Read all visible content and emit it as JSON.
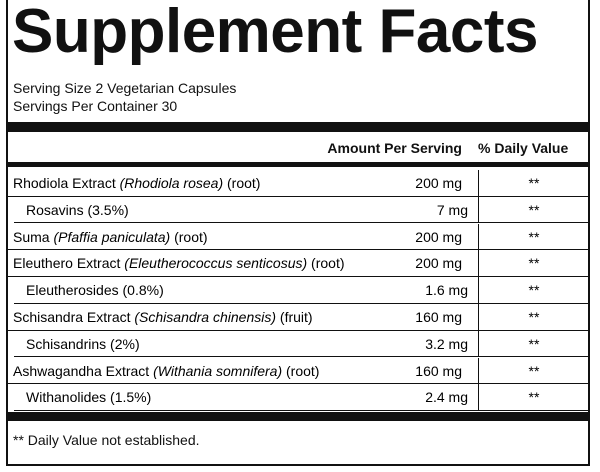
{
  "header": {
    "title": "Supplement Facts",
    "serving_size": "Serving Size 2 Vegetarian Capsules",
    "servings_per_container": "Servings Per Container 30"
  },
  "table": {
    "columns": [
      "Amount Per Serving",
      "% Daily Value"
    ],
    "rows": [
      {
        "name": "Rhodiola Extract",
        "latin": "(Rhodiola rosea)",
        "part": "(root)",
        "amount": "200 mg",
        "dv": "**"
      },
      {
        "name": "Rosavins (3.5%)",
        "amount": "7 mg",
        "dv": "**",
        "sub": true
      },
      {
        "name": "Suma",
        "latin": "(Pfaffia paniculata)",
        "part": "(root)",
        "amount": "200 mg",
        "dv": "**"
      },
      {
        "name": "Eleuthero Extract",
        "latin": "(Eleutherococcus senticosus)",
        "part": "(root)",
        "amount": "200 mg",
        "dv": "**"
      },
      {
        "name": "Eleutherosides (0.8%)",
        "amount": "1.6 mg",
        "dv": "**",
        "sub": true
      },
      {
        "name": "Schisandra Extract",
        "latin": "(Schisandra chinensis)",
        "part": "(fruit)",
        "amount": "160 mg",
        "dv": "**"
      },
      {
        "name": "Schisandrins (2%)",
        "amount": "3.2 mg",
        "dv": "**",
        "sub": true
      },
      {
        "name": "Ashwagandha Extract",
        "latin": "(Withania somnifera)",
        "part": "(root)",
        "amount": "160 mg",
        "dv": "**"
      },
      {
        "name": "Withanolides (1.5%)",
        "amount": "2.4 mg",
        "dv": "**",
        "sub": true
      }
    ]
  },
  "footnote": "** Daily Value not established."
}
